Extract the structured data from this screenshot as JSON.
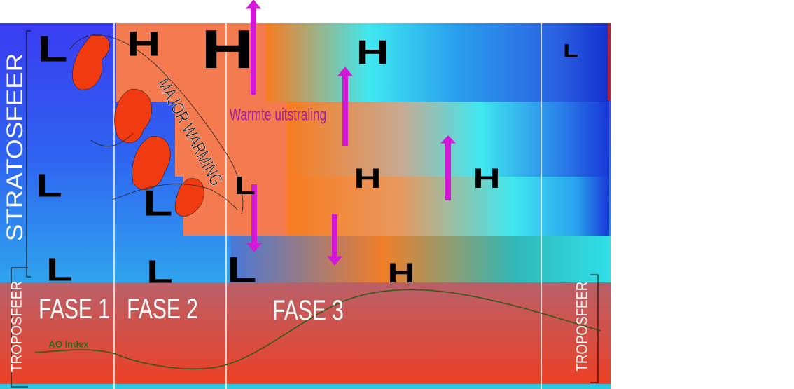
{
  "layers": {
    "stratosphere": "STRATOSFEER",
    "troposphere_left": "TROPOSFEER",
    "troposphere_right": "TROPOSFEER"
  },
  "phases": [
    "FASE 1",
    "FASE 2",
    "FASE 3"
  ],
  "annotations": {
    "major_warming": "MAJOR WARMING",
    "radiation": "Warmte uitstraling",
    "ao_index": "AO Index"
  },
  "pressure_systems": [
    "L",
    "H",
    "H",
    "H",
    "L",
    "L",
    "L",
    "L",
    "H",
    "H",
    "L",
    "L",
    "L",
    "H"
  ]
}
